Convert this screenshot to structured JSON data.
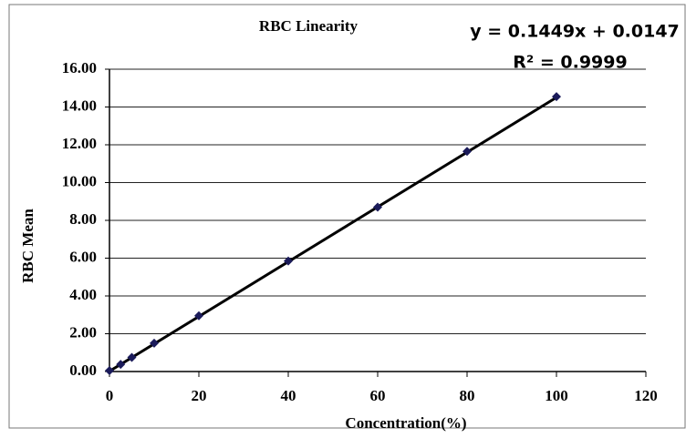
{
  "chart_data": {
    "type": "scatter",
    "title": "RBC Linearity",
    "x_label": "Concentration(%)",
    "y_label": "RBC Mean",
    "x": [
      0,
      2.5,
      5,
      10,
      20,
      40,
      60,
      80,
      100
    ],
    "series": [
      {
        "color": "#1b1b5a",
        "values": [
          0.05,
          0.38,
          0.75,
          1.5,
          2.95,
          5.85,
          8.7,
          11.65,
          14.55
        ]
      }
    ],
    "xlim": [
      0,
      120
    ],
    "xticks": [
      0,
      20,
      40,
      60,
      80,
      100,
      120
    ],
    "ylim": [
      0,
      16
    ],
    "yticks": [
      {
        "value": 0,
        "label": "0.00"
      },
      {
        "value": 2,
        "label": "2.00"
      },
      {
        "value": 4,
        "label": "4.00"
      },
      {
        "value": 6,
        "label": "6.00"
      },
      {
        "value": 8,
        "label": "8.00"
      },
      {
        "value": 10,
        "label": "10.00"
      },
      {
        "value": 12,
        "label": "12.00"
      },
      {
        "value": 14,
        "label": "14.00"
      },
      {
        "value": 16,
        "label": "16.00"
      }
    ],
    "grid": true,
    "trendline": {
      "slope": 0.1449,
      "intercept": 0.0147,
      "color": "#000000",
      "equation": "y = 0.1449x + 0.0147",
      "r_squared": "R² = 0.9999"
    }
  }
}
